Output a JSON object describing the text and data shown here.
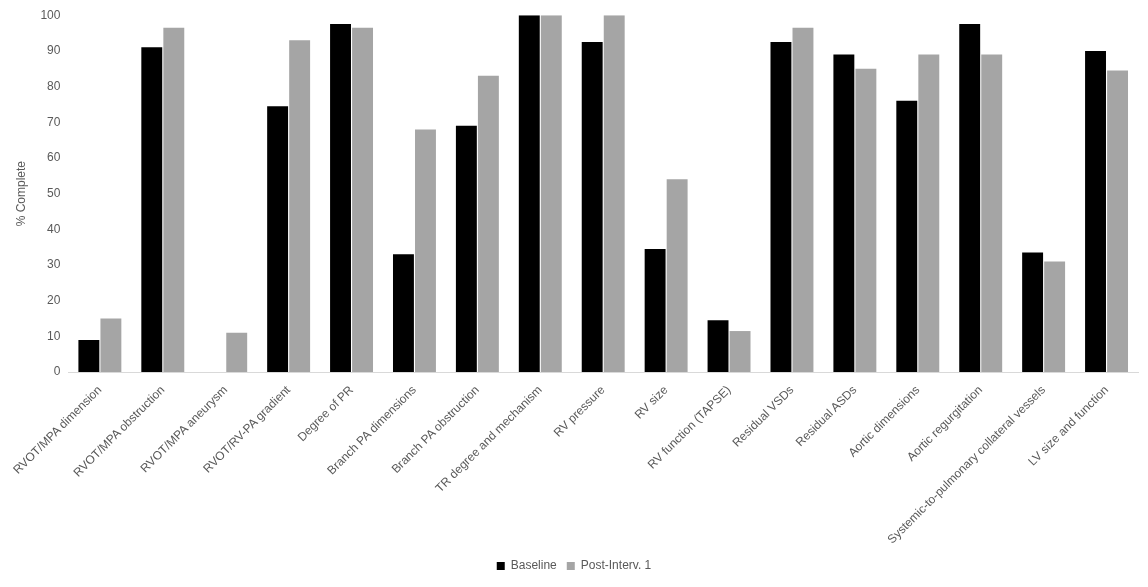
{
  "chart_data": {
    "type": "bar",
    "ylabel": "% Complete",
    "categories": [
      "RVOT/MPA dimension",
      "RVOT/MPA obstruction",
      "RVOT/MPA aneurysm",
      "RVOT/RV-PA gradient",
      "Degree of PR",
      "Branch PA dimensions",
      "Branch PA obstruction",
      "TR degree and mechanism",
      "RV pressure",
      "RV size",
      "RV function (TAPSE)",
      "Residual VSDs",
      "Residual ASDs",
      "Aortic dimensions",
      "Aortic regurgitation",
      "Systemic-to-pulmonary collateral vessels",
      "LV size and function"
    ],
    "series": [
      {
        "name": "Baseline",
        "color": "#000000",
        "values": [
          9,
          91,
          0,
          74.5,
          97.5,
          33,
          69,
          100,
          92.5,
          34.5,
          14.5,
          92.5,
          89,
          76,
          97.5,
          33.5,
          90
        ]
      },
      {
        "name": "Post-Interv. 1",
        "color": "#a5a5a5",
        "values": [
          15,
          96.5,
          11,
          93,
          96.5,
          68,
          83,
          100,
          100,
          54,
          11.5,
          96.5,
          85,
          89,
          89,
          31,
          84.5
        ]
      }
    ],
    "ylim": [
      0,
      100
    ],
    "yticks": [
      0,
      10,
      20,
      30,
      40,
      50,
      60,
      70,
      80,
      90,
      100
    ],
    "grid": false,
    "legend": "bottom"
  }
}
